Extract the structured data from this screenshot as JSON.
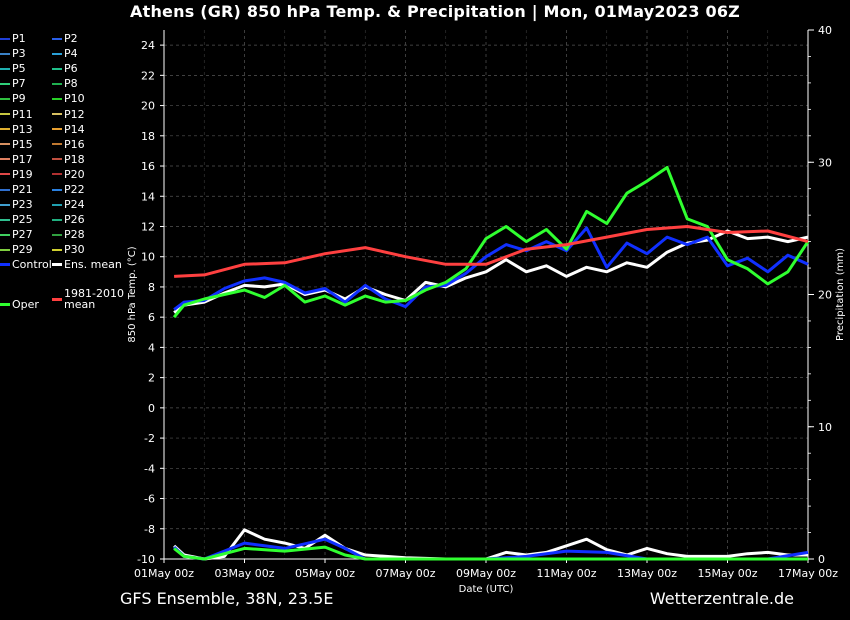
{
  "title": "Athens  (GR)  850 hPa Temp. & Precipitation | Mon, 01May2023 06Z",
  "footer": {
    "left": "GFS Ensemble, 38N, 23.5E",
    "right": "Wetterzentrale.de"
  },
  "legend": [
    {
      "label": "P1",
      "color": "#1f3fd8"
    },
    {
      "label": "P2",
      "color": "#2a5fe8"
    },
    {
      "label": "P3",
      "color": "#3a82c8"
    },
    {
      "label": "P4",
      "color": "#2aa0d8"
    },
    {
      "label": "P5",
      "color": "#1fb0b0"
    },
    {
      "label": "P6",
      "color": "#20c08a"
    },
    {
      "label": "P7",
      "color": "#2fd07a"
    },
    {
      "label": "P8",
      "color": "#1fb050"
    },
    {
      "label": "P9",
      "color": "#30c040"
    },
    {
      "label": "P10",
      "color": "#28d028"
    },
    {
      "label": "P11",
      "color": "#c8c840"
    },
    {
      "label": "P12",
      "color": "#d8c060"
    },
    {
      "label": "P13",
      "color": "#e0b030"
    },
    {
      "label": "P14",
      "color": "#e8a030"
    },
    {
      "label": "P15",
      "color": "#d89060"
    },
    {
      "label": "P16",
      "color": "#c07830"
    },
    {
      "label": "P17",
      "color": "#e08060"
    },
    {
      "label": "P18",
      "color": "#c05040"
    },
    {
      "label": "P19",
      "color": "#e04848"
    },
    {
      "label": "P20",
      "color": "#b03030"
    },
    {
      "label": "P21",
      "color": "#3070d0"
    },
    {
      "label": "P22",
      "color": "#2a80e0"
    },
    {
      "label": "P23",
      "color": "#40a0d0"
    },
    {
      "label": "P24",
      "color": "#20a0b0"
    },
    {
      "label": "P25",
      "color": "#30c090"
    },
    {
      "label": "P26",
      "color": "#20b080"
    },
    {
      "label": "P27",
      "color": "#40d060"
    },
    {
      "label": "P28",
      "color": "#30a040"
    },
    {
      "label": "P29",
      "color": "#80d040"
    },
    {
      "label": "P30",
      "color": "#d0d030"
    },
    {
      "label": "Control",
      "color": "#1030ff"
    },
    {
      "label": "Ens. mean",
      "color": "#ffffff"
    },
    {
      "label": "Oper",
      "color": "#30ff30"
    },
    {
      "label": "1981-2010 mean",
      "color": "#ff4040"
    }
  ],
  "chart_data": {
    "type": "line",
    "xlabel": "Date (UTC)",
    "ylabel": "850 hPa Temp. (°C)",
    "y2label": "Precipitation (mm)",
    "x_ticks": [
      "01May 00z",
      "03May 00z",
      "05May 00z",
      "07May 00z",
      "09May 00z",
      "11May 00z",
      "13May 00z",
      "15May 00z",
      "17May 00z"
    ],
    "x_range_days": [
      0,
      16
    ],
    "ylim": [
      -10,
      25
    ],
    "y_ticks": [
      -10,
      -8,
      -6,
      -4,
      -2,
      0,
      2,
      4,
      6,
      8,
      10,
      12,
      14,
      16,
      18,
      20,
      22,
      24
    ],
    "y2lim": [
      0,
      40
    ],
    "y2_ticks": [
      0,
      10,
      20,
      30,
      40
    ],
    "grid": true,
    "temperature_series": [
      {
        "name": "Ens. mean",
        "color": "#ffffff",
        "points": [
          [
            0.25,
            6.3
          ],
          [
            0.5,
            6.8
          ],
          [
            1,
            7.0
          ],
          [
            1.5,
            7.6
          ],
          [
            2,
            8.1
          ],
          [
            2.5,
            8.0
          ],
          [
            3,
            8.2
          ],
          [
            3.5,
            7.5
          ],
          [
            4,
            7.8
          ],
          [
            4.5,
            7.2
          ],
          [
            5,
            8.0
          ],
          [
            5.5,
            7.5
          ],
          [
            6,
            7.1
          ],
          [
            6.5,
            8.3
          ],
          [
            7,
            8.0
          ],
          [
            7.5,
            8.6
          ],
          [
            8,
            9.0
          ],
          [
            8.5,
            9.8
          ],
          [
            9,
            9.0
          ],
          [
            9.5,
            9.4
          ],
          [
            10,
            8.7
          ],
          [
            10.5,
            9.3
          ],
          [
            11,
            9.0
          ],
          [
            11.5,
            9.6
          ],
          [
            12,
            9.3
          ],
          [
            12.5,
            10.3
          ],
          [
            13,
            10.9
          ],
          [
            13.5,
            11.1
          ],
          [
            14,
            11.7
          ],
          [
            14.5,
            11.2
          ],
          [
            15,
            11.3
          ],
          [
            15.5,
            11.0
          ],
          [
            16,
            11.3
          ]
        ]
      },
      {
        "name": "Control",
        "color": "#1030ff",
        "points": [
          [
            0.25,
            6.5
          ],
          [
            0.5,
            7.0
          ],
          [
            1,
            7.1
          ],
          [
            1.5,
            7.9
          ],
          [
            2,
            8.4
          ],
          [
            2.5,
            8.6
          ],
          [
            3,
            8.3
          ],
          [
            3.5,
            7.6
          ],
          [
            4,
            7.9
          ],
          [
            4.5,
            7.0
          ],
          [
            5,
            8.1
          ],
          [
            5.5,
            7.2
          ],
          [
            6,
            6.7
          ],
          [
            6.5,
            8.0
          ],
          [
            7,
            8.1
          ],
          [
            7.5,
            8.9
          ],
          [
            8,
            10.0
          ],
          [
            8.5,
            10.8
          ],
          [
            9,
            10.4
          ],
          [
            9.5,
            11.0
          ],
          [
            10,
            10.4
          ],
          [
            10.5,
            11.9
          ],
          [
            11,
            9.3
          ],
          [
            11.5,
            10.9
          ],
          [
            12,
            10.2
          ],
          [
            12.5,
            11.3
          ],
          [
            13,
            10.8
          ],
          [
            13.5,
            11.3
          ],
          [
            14,
            9.4
          ],
          [
            14.5,
            9.9
          ],
          [
            15,
            9.0
          ],
          [
            15.5,
            10.1
          ],
          [
            16,
            9.5
          ]
        ]
      },
      {
        "name": "Oper",
        "color": "#30ff30",
        "points": [
          [
            0.25,
            6.0
          ],
          [
            0.5,
            6.8
          ],
          [
            1,
            7.2
          ],
          [
            1.5,
            7.5
          ],
          [
            2,
            7.8
          ],
          [
            2.5,
            7.3
          ],
          [
            3,
            8.1
          ],
          [
            3.5,
            7.0
          ],
          [
            4,
            7.4
          ],
          [
            4.5,
            6.8
          ],
          [
            5,
            7.4
          ],
          [
            5.5,
            7.0
          ],
          [
            6,
            7.1
          ],
          [
            6.5,
            7.8
          ],
          [
            7,
            8.3
          ],
          [
            7.5,
            9.2
          ],
          [
            8,
            11.2
          ],
          [
            8.5,
            12.0
          ],
          [
            9,
            11.0
          ],
          [
            9.5,
            11.8
          ],
          [
            10,
            10.5
          ],
          [
            10.5,
            13.0
          ],
          [
            11,
            12.2
          ],
          [
            11.5,
            14.2
          ],
          [
            12,
            15.0
          ],
          [
            12.5,
            15.9
          ],
          [
            13,
            12.5
          ],
          [
            13.5,
            12.0
          ],
          [
            14,
            9.8
          ],
          [
            14.5,
            9.2
          ],
          [
            15,
            8.2
          ],
          [
            15.5,
            9.0
          ],
          [
            16,
            11.0
          ]
        ]
      },
      {
        "name": "1981-2010 mean",
        "color": "#ff4040",
        "points": [
          [
            0.25,
            8.7
          ],
          [
            1,
            8.8
          ],
          [
            2,
            9.5
          ],
          [
            3,
            9.6
          ],
          [
            4,
            10.2
          ],
          [
            5,
            10.6
          ],
          [
            6,
            10.0
          ],
          [
            7,
            9.5
          ],
          [
            8,
            9.5
          ],
          [
            9,
            10.5
          ],
          [
            10,
            10.8
          ],
          [
            11,
            11.3
          ],
          [
            12,
            11.8
          ],
          [
            13,
            12.0
          ],
          [
            14,
            11.6
          ],
          [
            15,
            11.7
          ],
          [
            16,
            11.0
          ]
        ]
      }
    ],
    "precipitation_series": [
      {
        "name": "Ens. mean",
        "color": "#ffffff",
        "points": [
          [
            0.25,
            1.0
          ],
          [
            0.5,
            0.3
          ],
          [
            1,
            0.0
          ],
          [
            1.5,
            0.2
          ],
          [
            2,
            2.2
          ],
          [
            2.5,
            1.5
          ],
          [
            3,
            1.2
          ],
          [
            3.5,
            0.8
          ],
          [
            4,
            1.8
          ],
          [
            4.5,
            0.8
          ],
          [
            5,
            0.3
          ],
          [
            6,
            0.1
          ],
          [
            7,
            0.0
          ],
          [
            8,
            0.0
          ],
          [
            8.5,
            0.5
          ],
          [
            9,
            0.3
          ],
          [
            9.5,
            0.5
          ],
          [
            10,
            1.0
          ],
          [
            10.5,
            1.5
          ],
          [
            11,
            0.7
          ],
          [
            11.5,
            0.3
          ],
          [
            12,
            0.8
          ],
          [
            12.5,
            0.4
          ],
          [
            13,
            0.2
          ],
          [
            14,
            0.2
          ],
          [
            14.5,
            0.4
          ],
          [
            15,
            0.5
          ],
          [
            15.5,
            0.3
          ],
          [
            16,
            0.3
          ]
        ]
      },
      {
        "name": "Control",
        "color": "#1030ff",
        "points": [
          [
            0.25,
            0.9
          ],
          [
            0.5,
            0.2
          ],
          [
            1,
            0.0
          ],
          [
            2,
            1.2
          ],
          [
            3,
            0.8
          ],
          [
            4,
            1.5
          ],
          [
            4.5,
            0.8
          ],
          [
            5,
            0.0
          ],
          [
            8,
            0.0
          ],
          [
            9,
            0.2
          ],
          [
            10,
            0.6
          ],
          [
            11,
            0.5
          ],
          [
            12,
            0.0
          ],
          [
            13,
            0.0
          ],
          [
            15,
            0.0
          ],
          [
            16,
            0.5
          ]
        ]
      },
      {
        "name": "Oper",
        "color": "#30ff30",
        "points": [
          [
            0.25,
            0.8
          ],
          [
            0.5,
            0.2
          ],
          [
            1,
            0.0
          ],
          [
            2,
            0.8
          ],
          [
            3,
            0.6
          ],
          [
            4,
            0.9
          ],
          [
            4.5,
            0.3
          ],
          [
            5,
            0.0
          ],
          [
            16,
            0.0
          ]
        ]
      }
    ]
  }
}
